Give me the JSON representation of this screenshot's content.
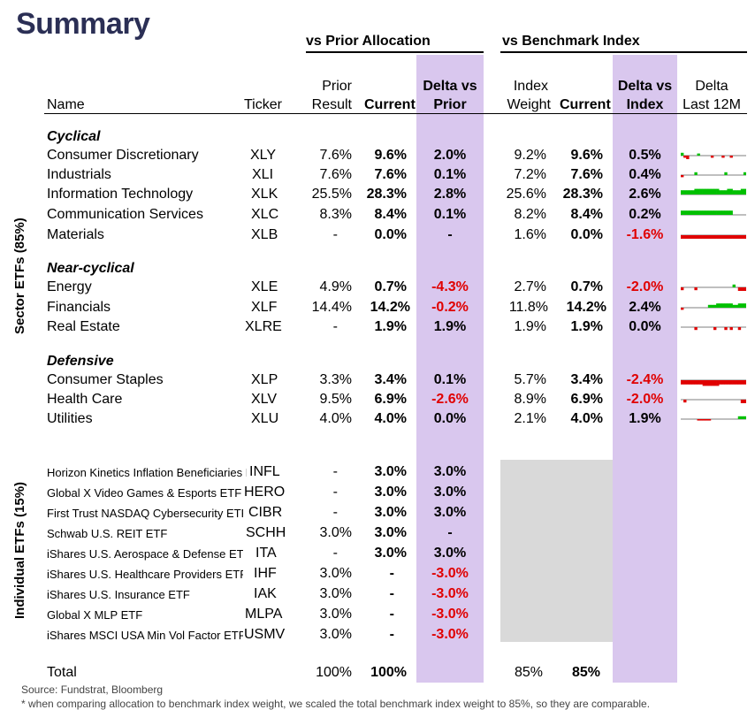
{
  "title": "Summary",
  "groups": {
    "prior": "vs Prior Allocation",
    "bench": "vs Benchmark Index"
  },
  "headers": {
    "name": "Name",
    "ticker": "Ticker",
    "prior_1": "Prior",
    "prior_2": "Result",
    "current": "Current",
    "delta_prior_1": "Delta vs",
    "delta_prior_2": "Prior",
    "index_1": "Index",
    "index_2": "Weight",
    "current2": "Current",
    "delta_index_1": "Delta vs",
    "delta_index_2": "Index",
    "delta12_1": "Delta",
    "delta12_2": "Last 12M"
  },
  "vertical_labels": {
    "sector": "Sector ETFs (85%)",
    "individual": "Individual ETFs (15%)"
  },
  "sections": [
    {
      "title": "Cyclical",
      "rows": [
        {
          "name": "Consumer Discretionary",
          "ticker": "XLY",
          "prior": "7.6%",
          "current": "9.6%",
          "delta_prior": "2.0%",
          "index": "9.2%",
          "current2": "9.6%",
          "delta_index": "0.5%",
          "spark": [
            0.4,
            -0.3,
            -0.5,
            0,
            0,
            0,
            0.3,
            0,
            0,
            0,
            0,
            -0.3,
            0,
            0,
            0,
            -0.3,
            0,
            0,
            -0.3,
            0,
            0,
            0,
            0,
            0
          ]
        },
        {
          "name": "Industrials",
          "ticker": "XLI",
          "prior": "7.6%",
          "current": "7.6%",
          "delta_prior": "0.1%",
          "index": "7.2%",
          "current2": "7.6%",
          "delta_index": "0.4%",
          "spark": [
            -0.3,
            0,
            0,
            0,
            0,
            0.4,
            0,
            0,
            0,
            0,
            0,
            0,
            0,
            0,
            0,
            0,
            0.4,
            0,
            0,
            0,
            0,
            0,
            0,
            0.4
          ]
        },
        {
          "name": "Information Technology",
          "ticker": "XLK",
          "prior": "25.5%",
          "current": "28.3%",
          "delta_prior": "2.8%",
          "index": "25.6%",
          "current2": "28.3%",
          "delta_index": "2.6%",
          "spark": [
            0.6,
            0.6,
            0.6,
            0.6,
            0.6,
            0.8,
            0.8,
            0.8,
            0.8,
            0.8,
            0.8,
            0.8,
            0.8,
            0.8,
            0.6,
            0.6,
            0.6,
            0.8,
            0.8,
            0.6,
            0.6,
            0.6,
            0.8,
            0.8
          ]
        },
        {
          "name": "Communication Services",
          "ticker": "XLC",
          "prior": "8.3%",
          "current": "8.4%",
          "delta_prior": "0.1%",
          "index": "8.2%",
          "current2": "8.4%",
          "delta_index": "0.2%",
          "spark": [
            0.6,
            0.6,
            0.6,
            0.6,
            0.6,
            0.6,
            0.6,
            0.6,
            0.6,
            0.6,
            0.6,
            0.6,
            0.6,
            0.6,
            0.6,
            0.6,
            0.6,
            0.6,
            0.6,
            0,
            0,
            0,
            0,
            0
          ]
        },
        {
          "name": "Materials",
          "ticker": "XLB",
          "prior": "-",
          "current": "0.0%",
          "delta_prior": "-",
          "index": "1.6%",
          "current2": "0.0%",
          "delta_index": "-1.6%",
          "spark": [
            -0.5,
            -0.5,
            -0.5,
            -0.5,
            -0.5,
            -0.5,
            -0.5,
            -0.5,
            -0.5,
            -0.5,
            -0.5,
            -0.5,
            -0.5,
            -0.5,
            -0.5,
            -0.5,
            -0.5,
            -0.5,
            -0.5,
            -0.5,
            -0.5,
            -0.5,
            -0.5,
            -0.5
          ]
        }
      ]
    },
    {
      "title": "Near-cyclical",
      "rows": [
        {
          "name": "Energy",
          "ticker": "XLE",
          "prior": "4.9%",
          "current": "0.7%",
          "delta_prior": "-4.3%",
          "index": "2.7%",
          "current2": "0.7%",
          "delta_index": "-2.0%",
          "spark": [
            -0.4,
            0,
            0,
            0,
            0,
            -0.4,
            0,
            0,
            0,
            0,
            0,
            0,
            0,
            0,
            0,
            0,
            0,
            0,
            0,
            0.4,
            0,
            -0.5,
            -0.5,
            -0.5
          ]
        },
        {
          "name": "Financials",
          "ticker": "XLF",
          "prior": "14.4%",
          "current": "14.2%",
          "delta_prior": "-0.2%",
          "index": "11.8%",
          "current2": "14.2%",
          "delta_index": "2.4%",
          "spark": [
            -0.3,
            0,
            0,
            0,
            0,
            0,
            0,
            0,
            0,
            0,
            0.4,
            0.4,
            0.4,
            0.6,
            0.6,
            0.6,
            0.6,
            0.6,
            0.6,
            0.4,
            0.4,
            0.6,
            0.6,
            0.6
          ]
        },
        {
          "name": "Real Estate",
          "ticker": "XLRE",
          "prior": "-",
          "current": "1.9%",
          "delta_prior": "1.9%",
          "index": "1.9%",
          "current2": "1.9%",
          "delta_index": "0.0%",
          "spark": [
            0,
            0,
            0,
            0,
            0,
            -0.4,
            0,
            0,
            0,
            0,
            0,
            0,
            -0.4,
            0,
            0,
            0,
            -0.4,
            0,
            -0.4,
            0,
            0,
            -0.4,
            0,
            0
          ]
        }
      ]
    },
    {
      "title": "Defensive",
      "rows": [
        {
          "name": "Consumer Staples",
          "ticker": "XLP",
          "prior": "3.3%",
          "current": "3.4%",
          "delta_prior": "0.1%",
          "index": "5.7%",
          "current2": "3.4%",
          "delta_index": "-2.4%",
          "spark": [
            -0.6,
            -0.6,
            -0.6,
            -0.6,
            -0.6,
            -0.6,
            -0.6,
            -0.6,
            -0.8,
            -0.8,
            -0.8,
            -0.8,
            -0.8,
            -0.8,
            -0.6,
            -0.6,
            -0.6,
            -0.6,
            -0.6,
            -0.6,
            -0.6,
            -0.6,
            -0.6,
            -0.6
          ]
        },
        {
          "name": "Health Care",
          "ticker": "XLV",
          "prior": "9.5%",
          "current": "6.9%",
          "delta_prior": "-2.6%",
          "index": "8.9%",
          "current2": "6.9%",
          "delta_index": "-2.0%",
          "spark": [
            0,
            -0.4,
            0,
            0,
            0,
            0,
            0,
            0,
            0,
            0,
            0,
            0,
            0,
            0,
            0,
            0,
            0,
            0,
            0,
            0,
            0,
            0,
            -0.5,
            -0.5
          ]
        },
        {
          "name": "Utilities",
          "ticker": "XLU",
          "prior": "4.0%",
          "current": "4.0%",
          "delta_prior": "0.0%",
          "index": "2.1%",
          "current2": "4.0%",
          "delta_index": "1.9%",
          "spark": [
            0,
            0,
            0,
            0,
            0,
            0,
            -0.2,
            -0.2,
            -0.2,
            -0.2,
            -0.2,
            0,
            0,
            0,
            0,
            0,
            0,
            0,
            0,
            0,
            0,
            0.4,
            0.4,
            0.4
          ]
        }
      ]
    }
  ],
  "individual": [
    {
      "name": "Horizon Kinetics Inflation Beneficiaries ETF",
      "ticker": "INFL",
      "prior": "-",
      "current": "3.0%",
      "delta_prior": "3.0%"
    },
    {
      "name": "Global X Video Games & Esports ETF",
      "ticker": "HERO",
      "prior": "-",
      "current": "3.0%",
      "delta_prior": "3.0%"
    },
    {
      "name": "First Trust NASDAQ Cybersecurity ETF",
      "ticker": "CIBR",
      "prior": "-",
      "current": "3.0%",
      "delta_prior": "3.0%"
    },
    {
      "name": "Schwab U.S. REIT ETF",
      "ticker": "SCHH",
      "prior": "3.0%",
      "current": "3.0%",
      "delta_prior": "-"
    },
    {
      "name": "iShares U.S. Aerospace & Defense ETF",
      "ticker": "ITA",
      "prior": "-",
      "current": "3.0%",
      "delta_prior": "3.0%"
    },
    {
      "name": "iShares U.S. Healthcare Providers ETF",
      "ticker": "IHF",
      "prior": "3.0%",
      "current": "-",
      "delta_prior": "-3.0%"
    },
    {
      "name": "iShares U.S. Insurance ETF",
      "ticker": "IAK",
      "prior": "3.0%",
      "current": "-",
      "delta_prior": "-3.0%"
    },
    {
      "name": "Global X MLP ETF",
      "ticker": "MLPA",
      "prior": "3.0%",
      "current": "-",
      "delta_prior": "-3.0%"
    },
    {
      "name": "iShares MSCI USA Min Vol Factor ETF",
      "ticker": "USMV",
      "prior": "3.0%",
      "current": "-",
      "delta_prior": "-3.0%"
    }
  ],
  "total": {
    "label": "Total",
    "prior": "100%",
    "current": "100%",
    "index": "85%",
    "current2": "85%"
  },
  "footer": {
    "source": "Source: Fundstrat, Bloomberg",
    "note": "* when comparing allocation to benchmark index weight, we scaled the total benchmark index weight to 85%, so they are comparable."
  },
  "colors": {
    "title": "#2b2f55",
    "band": "#d9c7ee",
    "gray_box": "#d9d9d9",
    "negative": "#e00000",
    "spark_pos": "#00c000",
    "spark_neg": "#e00000"
  }
}
